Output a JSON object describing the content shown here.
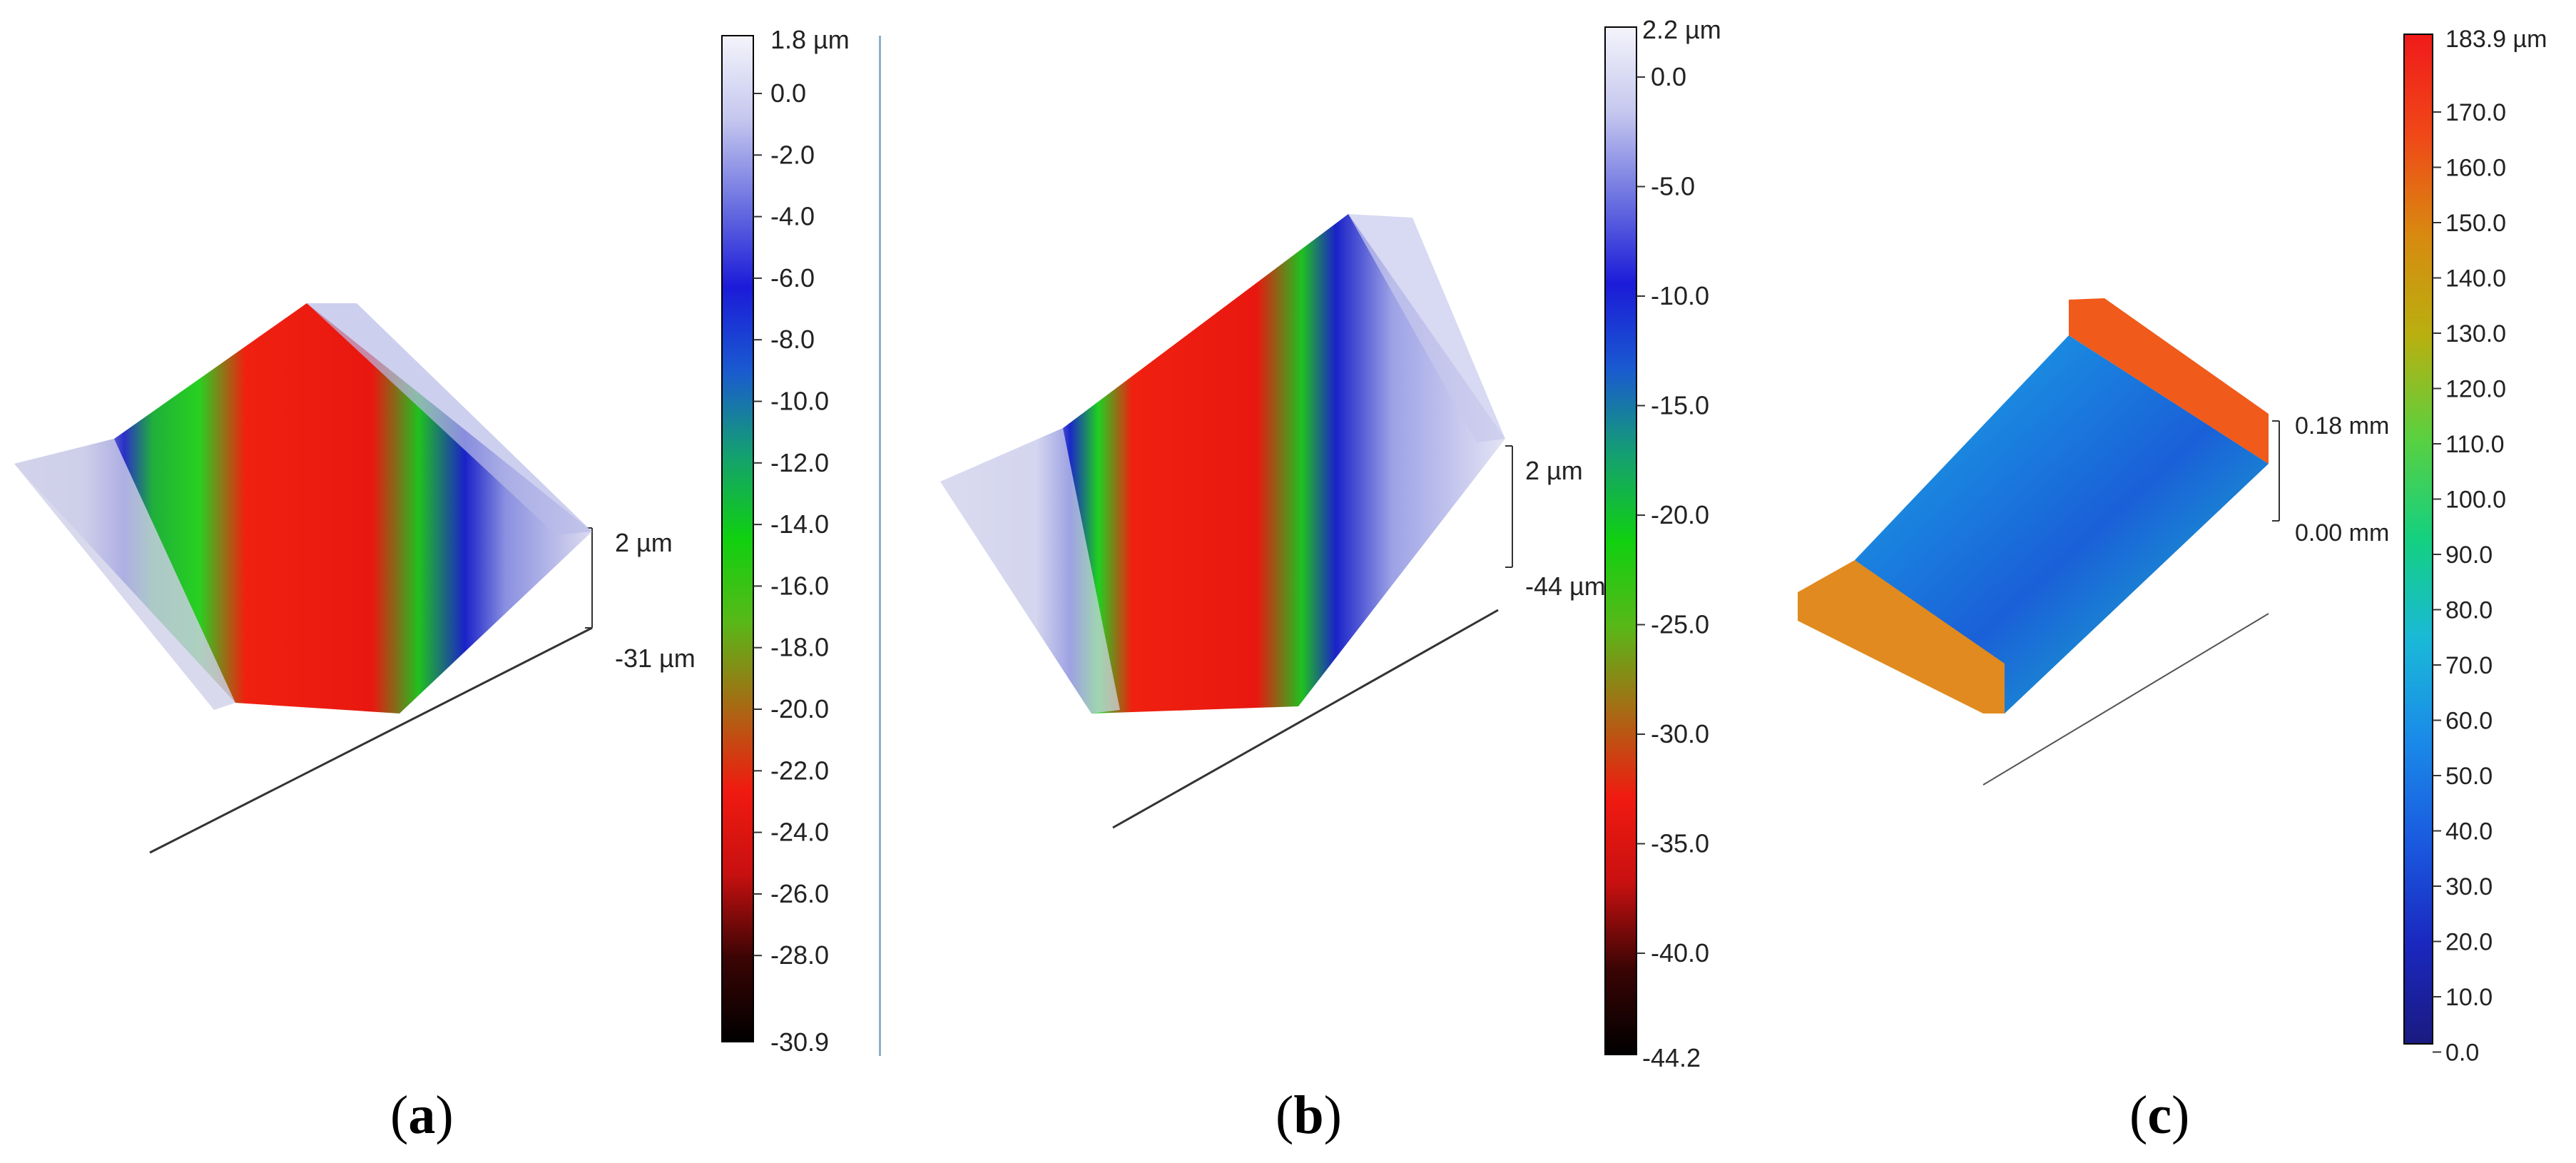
{
  "panels": [
    {
      "label": "a",
      "colorbar": {
        "max_label": "1.8 µm",
        "ticks": [
          "0.0",
          "-2.0",
          "-4.0",
          "-6.0",
          "-8.0",
          "-10.0",
          "-12.0",
          "-14.0",
          "-16.0",
          "-18.0",
          "-20.0",
          "-22.0",
          "-24.0",
          "-26.0",
          "-28.0"
        ],
        "min_label": "-30.9",
        "scale": [
          "#f4f4fb",
          "#c5c7ee",
          "#6c72e0",
          "#1b1bd8",
          "#1a5ad0",
          "#14a070",
          "#10d010",
          "#58b818",
          "#a86a14",
          "#f01a10",
          "#c81010",
          "#3a0404",
          "#000000"
        ]
      },
      "z_axis": {
        "top": "2 µm",
        "bottom": "-31 µm"
      }
    },
    {
      "label": "b",
      "colorbar": {
        "max_label": "2.2 µm",
        "ticks": [
          "0.0",
          "-5.0",
          "-10.0",
          "-15.0",
          "-20.0",
          "-25.0",
          "-30.0",
          "-35.0",
          "-40.0"
        ],
        "min_label": "-44.2",
        "scale": [
          "#f4f4fb",
          "#c5c7ee",
          "#6c72e0",
          "#1b1bd8",
          "#1a5ad0",
          "#14a070",
          "#10d010",
          "#58b818",
          "#a86a14",
          "#f01a10",
          "#c81010",
          "#3a0404",
          "#000000"
        ]
      },
      "z_axis": {
        "top": "2 µm",
        "bottom": "-44 µm"
      }
    },
    {
      "label": "c",
      "colorbar": {
        "max_label": "183.9 µm",
        "ticks": [
          "170.0",
          "160.0",
          "150.0",
          "140.0",
          "130.0",
          "120.0",
          "110.0",
          "100.0",
          "90.0",
          "80.0",
          "70.0",
          "60.0",
          "50.0",
          "40.0",
          "30.0",
          "20.0",
          "10.0",
          "0.0"
        ],
        "scale": [
          "#f01a1a",
          "#f04818",
          "#d88a10",
          "#b8b010",
          "#5ad040",
          "#14d080",
          "#1ab8d8",
          "#1a8ae8",
          "#1a5ae0",
          "#1a28c0",
          "#1a1a80"
        ]
      },
      "z_axis": {
        "top": "0.18 mm",
        "bottom": "0.00 mm"
      }
    }
  ]
}
